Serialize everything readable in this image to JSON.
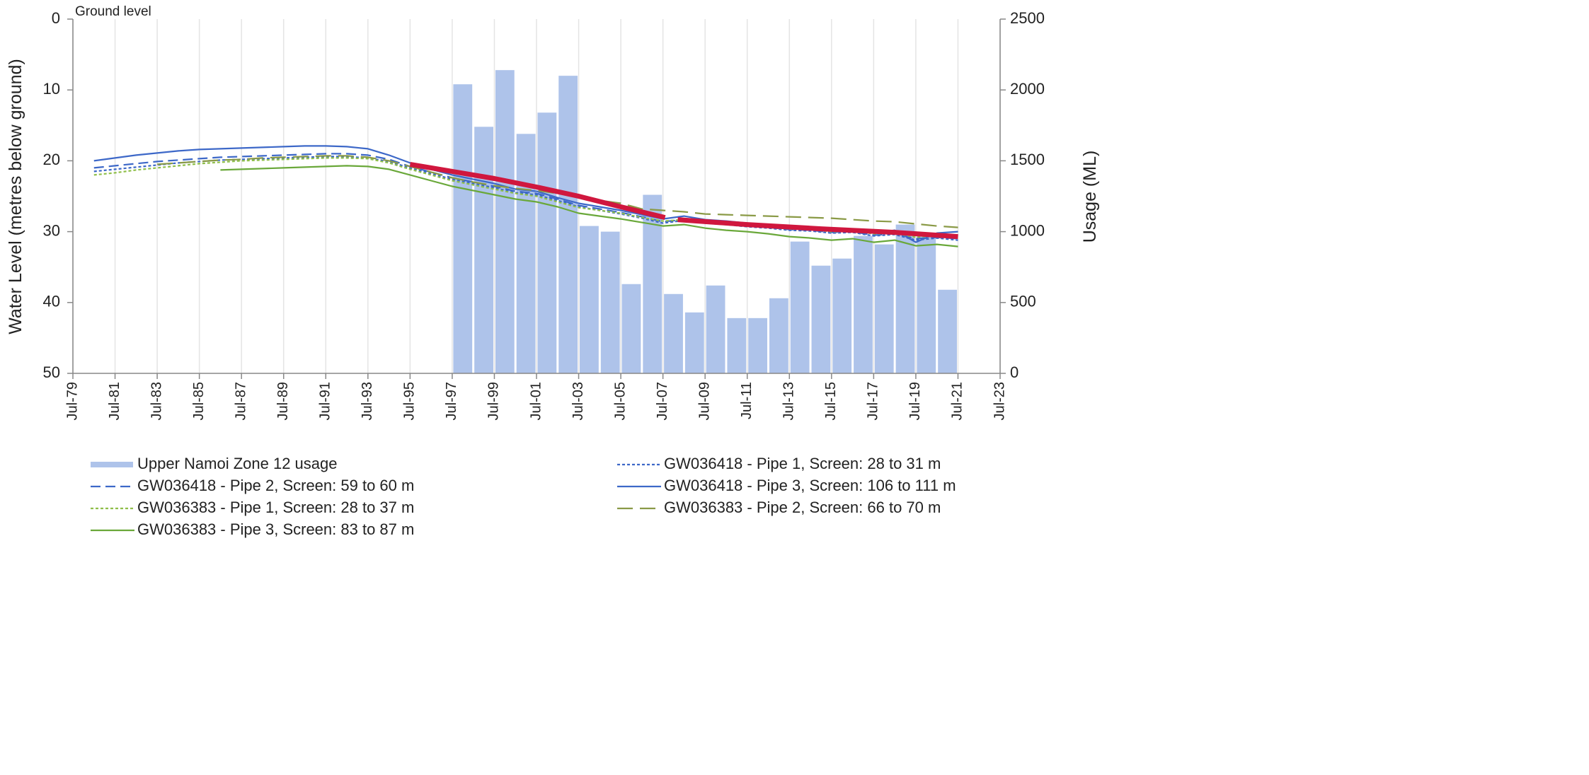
{
  "chart_data": {
    "type": "line",
    "annotation": "Ground level",
    "ylabel": "Water Level (metres below ground)",
    "y2label": "Usage (ML)",
    "xlim": [
      1979.5,
      2023.5
    ],
    "xticks": [
      {
        "value": 1979.5,
        "label": "Jul-79"
      },
      {
        "value": 1981.5,
        "label": "Jul-81"
      },
      {
        "value": 1983.5,
        "label": "Jul-83"
      },
      {
        "value": 1985.5,
        "label": "Jul-85"
      },
      {
        "value": 1987.5,
        "label": "Jul-87"
      },
      {
        "value": 1989.5,
        "label": "Jul-89"
      },
      {
        "value": 1991.5,
        "label": "Jul-91"
      },
      {
        "value": 1993.5,
        "label": "Jul-93"
      },
      {
        "value": 1995.5,
        "label": "Jul-95"
      },
      {
        "value": 1997.5,
        "label": "Jul-97"
      },
      {
        "value": 1999.5,
        "label": "Jul-99"
      },
      {
        "value": 2001.5,
        "label": "Jul-01"
      },
      {
        "value": 2003.5,
        "label": "Jul-03"
      },
      {
        "value": 2005.5,
        "label": "Jul-05"
      },
      {
        "value": 2007.5,
        "label": "Jul-07"
      },
      {
        "value": 2009.5,
        "label": "Jul-09"
      },
      {
        "value": 2011.5,
        "label": "Jul-11"
      },
      {
        "value": 2013.5,
        "label": "Jul-13"
      },
      {
        "value": 2015.5,
        "label": "Jul-15"
      },
      {
        "value": 2017.5,
        "label": "Jul-17"
      },
      {
        "value": 2019.5,
        "label": "Jul-19"
      },
      {
        "value": 2021.5,
        "label": "Jul-21"
      },
      {
        "value": 2023.5,
        "label": "Jul-23"
      }
    ],
    "ylim": [
      0,
      50
    ],
    "y_inverted": true,
    "yticks": [
      0,
      10,
      20,
      30,
      40,
      50
    ],
    "y2lim": [
      0,
      2500
    ],
    "y2ticks": [
      0,
      500,
      1000,
      1500,
      2000,
      2500
    ],
    "grid": "x",
    "legend": "bottom",
    "x": [
      1980.5,
      1981.5,
      1982.5,
      1983.5,
      1984.5,
      1985.5,
      1986.5,
      1987.5,
      1988.5,
      1989.5,
      1990.5,
      1991.5,
      1992.5,
      1993.5,
      1994.5,
      1995.5,
      1996.5,
      1997.5,
      1998.5,
      1999.5,
      2000.5,
      2001.5,
      2002.5,
      2003.5,
      2004.5,
      2005.5,
      2006.5,
      2007.5,
      2008.5,
      2009.5,
      2010.5,
      2011.5,
      2012.5,
      2013.5,
      2014.5,
      2015.5,
      2016.5,
      2017.5,
      2018.5,
      2019.5,
      2020.5,
      2021.5
    ],
    "series": [
      {
        "name": "Upper Namoi Zone 12 usage",
        "type": "bar",
        "axis": "y2",
        "color": "#aec3ea",
        "x": [
          1998,
          1999,
          2000,
          2001,
          2002,
          2003,
          2004,
          2005,
          2006,
          2007,
          2008,
          2009,
          2010,
          2011,
          2012,
          2013,
          2014,
          2015,
          2016,
          2017,
          2018,
          2019,
          2020,
          2021
        ],
        "values": [
          2040,
          1740,
          2140,
          1690,
          1840,
          2100,
          1040,
          1000,
          630,
          1260,
          560,
          430,
          620,
          390,
          390,
          530,
          930,
          760,
          810,
          970,
          910,
          1050,
          990,
          590
        ]
      },
      {
        "name": "GW036418 - Pipe 1, Screen: 28 to 31 m",
        "color": "#3d68c8",
        "style": "dotted",
        "values": [
          21.5,
          21.2,
          20.9,
          20.6,
          20.3,
          20.1,
          19.9,
          19.8,
          19.7,
          19.6,
          19.5,
          19.4,
          19.4,
          19.6,
          20.1,
          21.0,
          21.8,
          22.6,
          23.2,
          23.8,
          24.5,
          24.8,
          25.6,
          26.5,
          27.0,
          27.5,
          28.1,
          28.8,
          28.4,
          28.8,
          29.0,
          29.3,
          29.5,
          29.8,
          29.9,
          30.2,
          30.1,
          30.6,
          30.4,
          31.2,
          30.9,
          31.2
        ]
      },
      {
        "name": "GW036418 - Pipe 2, Screen: 59 to 60 m",
        "color": "#3d68c8",
        "style": "dashed",
        "values": [
          21.0,
          20.7,
          20.4,
          20.1,
          19.9,
          19.7,
          19.5,
          19.4,
          19.3,
          19.2,
          19.1,
          19.0,
          19.0,
          19.2,
          19.8,
          20.8,
          21.6,
          22.4,
          23.0,
          23.6,
          24.3,
          24.6,
          25.4,
          26.3,
          26.8,
          27.3,
          27.9,
          28.6,
          28.3,
          28.7,
          28.9,
          29.2,
          29.4,
          29.7,
          29.8,
          30.1,
          30.0,
          30.5,
          30.3,
          31.0,
          30.8,
          31.0
        ]
      },
      {
        "name": "GW036418 - Pipe 3, Screen: 106 to 111 m",
        "color": "#3d68c8",
        "style": "solid",
        "values": [
          20.0,
          19.6,
          19.2,
          18.9,
          18.6,
          18.4,
          18.3,
          18.2,
          18.1,
          18.0,
          17.9,
          17.9,
          18.0,
          18.3,
          19.2,
          20.3,
          21.2,
          22.0,
          22.6,
          23.2,
          24.0,
          24.3,
          25.2,
          26.0,
          26.5,
          27.0,
          27.6,
          28.2,
          27.8,
          28.3,
          28.5,
          28.8,
          29.0,
          29.4,
          29.3,
          29.8,
          29.6,
          30.2,
          29.8,
          31.5,
          30.2,
          30.0
        ]
      },
      {
        "name": "GW036383 - Pipe 1, Screen: 28 to 37 m",
        "color": "#8fbf4a",
        "style": "dotted",
        "values": [
          22.0,
          21.7,
          21.3,
          21.0,
          20.7,
          20.4,
          20.2,
          20.0,
          19.9,
          19.8,
          19.7,
          19.6,
          19.6,
          19.7,
          20.3,
          21.2,
          22.0,
          22.8,
          23.4,
          24.0,
          24.6,
          25.0,
          25.8,
          26.6,
          27.0,
          27.4,
          28.0,
          28.5,
          28.3,
          28.6,
          28.9,
          29.1,
          29.4,
          29.6,
          29.7,
          30.0,
          29.9,
          30.3,
          30.2,
          30.8,
          30.5,
          30.6
        ]
      },
      {
        "name": "GW036383 - Pipe 2, Screen: 66 to 70 m",
        "color": "#8a9a46",
        "style": "long-dash",
        "values": [
          null,
          null,
          null,
          20.5,
          20.3,
          20.1,
          19.9,
          19.8,
          19.6,
          19.5,
          19.4,
          19.3,
          19.3,
          19.5,
          20.0,
          20.8,
          21.6,
          22.4,
          23.0,
          23.5,
          23.9,
          24.2,
          24.6,
          25.0,
          25.6,
          26.0,
          26.8,
          27.0,
          27.2,
          27.5,
          27.6,
          27.7,
          27.8,
          27.9,
          28.0,
          28.1,
          28.3,
          28.5,
          28.6,
          28.9,
          29.2,
          29.4
        ]
      },
      {
        "name": "GW036383 - Pipe 3, Screen: 83 to 87 m",
        "color": "#6aa83a",
        "style": "solid",
        "values": [
          null,
          null,
          null,
          null,
          null,
          null,
          21.3,
          21.2,
          21.1,
          21.0,
          20.9,
          20.8,
          20.7,
          20.8,
          21.2,
          22.0,
          22.8,
          23.6,
          24.2,
          24.8,
          25.4,
          25.8,
          26.5,
          27.4,
          27.8,
          28.2,
          28.7,
          29.2,
          29.0,
          29.5,
          29.8,
          30.0,
          30.3,
          30.7,
          30.9,
          31.2,
          31.0,
          31.5,
          31.2,
          32.0,
          31.8,
          32.1
        ]
      }
    ],
    "trend": {
      "color": "#d0173e",
      "x": [
        1995.5,
        1997.5,
        1999.5,
        2001.5,
        2003.5,
        2005.5,
        2007.6,
        null,
        2008.2,
        2011.5,
        2015,
        2018.5,
        2021.5
      ],
      "values": [
        20.5,
        21.5,
        22.5,
        23.7,
        25.0,
        26.5,
        28.0,
        null,
        28.3,
        29.0,
        29.6,
        30.1,
        30.7
      ]
    }
  }
}
